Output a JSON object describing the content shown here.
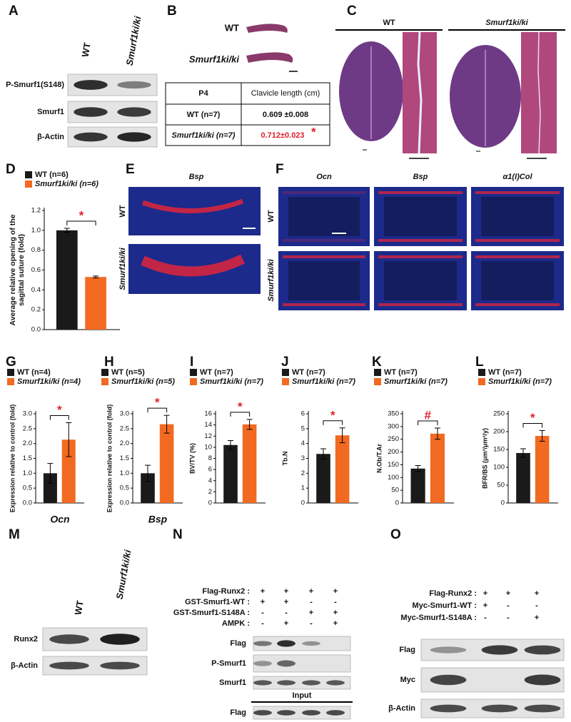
{
  "panels": {
    "A": {
      "letter": "A",
      "lanes": [
        "WT",
        "Smurf1ki/ki"
      ],
      "rows": [
        "P-Smurf1(S148)",
        "Smurf1",
        "β-Actin"
      ]
    },
    "B": {
      "letter": "B",
      "samples": [
        "WT",
        "Smurf1ki/ki"
      ],
      "table": {
        "header": [
          "P4",
          "Clavicle length (cm)"
        ],
        "rows": [
          [
            "WT (n=7)",
            "0.609 ±0.008"
          ],
          [
            "Smurf1ki/ki (n=7)",
            "0.712±0.023"
          ]
        ],
        "mark": "*"
      }
    },
    "C": {
      "letter": "C",
      "groups": [
        "WT",
        "Smurf1ki/ki"
      ]
    },
    "E": {
      "letter": "E",
      "title": "Bsp",
      "rows": [
        "WT",
        "Smurf1ki/ki"
      ]
    },
    "F": {
      "letter": "F",
      "columns": [
        "Ocn",
        "Bsp",
        "α1(I)Col"
      ],
      "rows": [
        "WT",
        "Smurf1ki/ki"
      ]
    },
    "M": {
      "letter": "M",
      "lanes": [
        "WT",
        "Smurf1ki/ki"
      ],
      "rows": [
        "Runx2",
        "β-Actin"
      ]
    },
    "N": {
      "letter": "N",
      "conditions": [
        {
          "label": "Flag-Runx2 :",
          "values": [
            "+",
            "+",
            "+",
            "+"
          ]
        },
        {
          "label": "GST-Smurf1-WT :",
          "values": [
            "+",
            "+",
            "-",
            "-"
          ]
        },
        {
          "label": "GST-Smurf1-S148A :",
          "values": [
            "-",
            "-",
            "+",
            "+"
          ]
        },
        {
          "label": "AMPK :",
          "values": [
            "-",
            "+",
            "-",
            "+"
          ]
        }
      ],
      "rows": [
        "Flag",
        "P-Smurf1",
        "Smurf1"
      ],
      "input_label": "Input",
      "input_rows": [
        "Flag"
      ]
    },
    "O": {
      "letter": "O",
      "conditions": [
        {
          "label": "Flag-Runx2 :",
          "values": [
            "+",
            "+",
            "+"
          ]
        },
        {
          "label": "Myc-Smurf1-WT :",
          "values": [
            "+",
            "-",
            "-"
          ]
        },
        {
          "label": "Myc-Smurf1-S148A :",
          "values": [
            "-",
            "-",
            "+"
          ]
        }
      ],
      "rows": [
        "Flag",
        "Myc",
        "β-Actin"
      ]
    }
  },
  "chart_data": [
    {
      "type": "bar",
      "panel": "D",
      "ylabel": [
        "Average relative opening of the",
        "sagittal suture (fold)"
      ],
      "ylim": [
        0,
        1.2
      ],
      "yticks": [
        {
          "value": 0,
          "label": "0.0"
        },
        0.2,
        0.4,
        0.6,
        0.8,
        {
          "value": 1,
          "label": "1.0"
        },
        1.2
      ],
      "significance": "*",
      "series": [
        {
          "name": "WT (n=6)",
          "color": "#1a1a1a",
          "values": [
            1.0
          ],
          "errors": [
            0.02
          ]
        },
        {
          "name": "Smurf1ki/ki (n=6)",
          "color": "#f26a21",
          "values": [
            0.53
          ],
          "errors": [
            0.01
          ]
        }
      ]
    },
    {
      "type": "bar",
      "panel": "G",
      "ylabel": "Expression relative to control (fold)",
      "xlabel": "Ocn",
      "ylim": [
        0,
        3
      ],
      "yticks": [
        {
          "value": 0,
          "label": "0.0"
        },
        0.5,
        {
          "value": 1,
          "label": "1.0"
        },
        1.5,
        {
          "value": 2,
          "label": "2.0"
        },
        2.5,
        {
          "value": 3,
          "label": "3.0"
        }
      ],
      "significance": "*",
      "series": [
        {
          "name": "WT (n=4)",
          "color": "#1a1a1a",
          "values": [
            1.0
          ],
          "errors": [
            0.33
          ]
        },
        {
          "name": "Smurf1ki/ki (n=4)",
          "color": "#f26a21",
          "values": [
            2.13
          ],
          "errors": [
            0.57
          ]
        }
      ]
    },
    {
      "type": "bar",
      "panel": "H",
      "ylabel": "Expression relative to control (fold)",
      "xlabel": "Bsp",
      "ylim": [
        0,
        3
      ],
      "yticks": [
        {
          "value": 0,
          "label": "0.0"
        },
        0.5,
        {
          "value": 1,
          "label": "1.0"
        },
        1.5,
        {
          "value": 2,
          "label": "2.0"
        },
        2.5,
        {
          "value": 3,
          "label": "3.0"
        }
      ],
      "significance": "*",
      "series": [
        {
          "name": "WT (n=5)",
          "color": "#1a1a1a",
          "values": [
            1.0
          ],
          "errors": [
            0.27
          ]
        },
        {
          "name": "Smurf1ki/ki (n=5)",
          "color": "#f26a21",
          "values": [
            2.65
          ],
          "errors": [
            0.3
          ]
        }
      ]
    },
    {
      "type": "bar",
      "panel": "I",
      "ylabel": "BV/TV (%)",
      "ylim": [
        0,
        16
      ],
      "yticks": [
        0,
        2,
        4,
        6,
        8,
        10,
        12,
        14,
        16
      ],
      "significance": "*",
      "series": [
        {
          "name": "WT (n=7)",
          "color": "#1a1a1a",
          "values": [
            10.4
          ],
          "errors": [
            0.8
          ]
        },
        {
          "name": "Smurf1ki/ki (n=7)",
          "color": "#f26a21",
          "values": [
            14.1
          ],
          "errors": [
            0.9
          ]
        }
      ]
    },
    {
      "type": "bar",
      "panel": "J",
      "ylabel": "Tb.N",
      "ylim": [
        0,
        6
      ],
      "yticks": [
        0,
        1,
        2,
        3,
        4,
        5,
        6
      ],
      "significance": "*",
      "series": [
        {
          "name": "WT (n=7)",
          "color": "#1a1a1a",
          "values": [
            3.3
          ],
          "errors": [
            0.35
          ]
        },
        {
          "name": "Smurf1ki/ki (n=7)",
          "color": "#f26a21",
          "values": [
            4.55
          ],
          "errors": [
            0.5
          ]
        }
      ]
    },
    {
      "type": "bar",
      "panel": "K",
      "ylabel": "N.Ob/T.Ar",
      "ylim": [
        0,
        350
      ],
      "yticks": [
        0,
        50,
        100,
        150,
        200,
        250,
        300,
        350
      ],
      "significance": "#",
      "series": [
        {
          "name": "WT (n=7)",
          "color": "#1a1a1a",
          "values": [
            135
          ],
          "errors": [
            12
          ]
        },
        {
          "name": "Smurf1ki/ki (n=7)",
          "color": "#f26a21",
          "values": [
            272
          ],
          "errors": [
            22
          ]
        }
      ]
    },
    {
      "type": "bar",
      "panel": "L",
      "ylabel": "BFR/BS (μm³/μm²/y)",
      "ylim": [
        0,
        250
      ],
      "yticks": [
        0,
        50,
        100,
        150,
        200,
        250
      ],
      "significance": "*",
      "series": [
        {
          "name": "WT (n=7)",
          "color": "#1a1a1a",
          "values": [
            140
          ],
          "errors": [
            12
          ]
        },
        {
          "name": "Smurf1ki/ki (n=7)",
          "color": "#f26a21",
          "values": [
            188
          ],
          "errors": [
            15
          ]
        }
      ]
    }
  ]
}
